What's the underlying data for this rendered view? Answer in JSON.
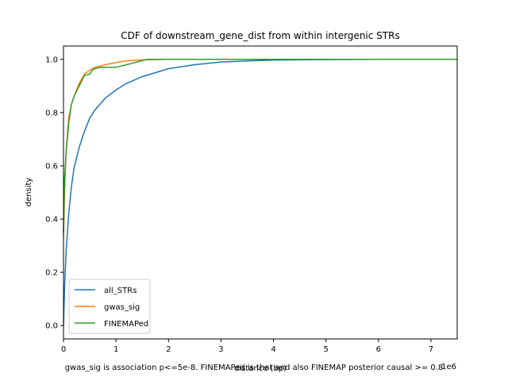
{
  "chart_data": {
    "type": "line",
    "title": "CDF of downstream_gene_dist from within intergenic STRs",
    "xlabel": "distance (bp)",
    "ylabel": "density",
    "x_offset_label": "1e6",
    "caption": "gwas_sig is association p<=5e-8. FINEMAPed is that and also FINEMAP posterior causal >= 0.8",
    "xlim": [
      0,
      7.5
    ],
    "ylim": [
      -0.05,
      1.05
    ],
    "x_ticks": [
      0,
      1,
      2,
      3,
      4,
      5,
      6,
      7
    ],
    "y_ticks": [
      0.0,
      0.2,
      0.4,
      0.6,
      0.8,
      1.0
    ],
    "grid": false,
    "legend_placement": "lower-left",
    "series": [
      {
        "name": "all_STRs",
        "color": "#1f77b4",
        "x": [
          0,
          0.02,
          0.05,
          0.1,
          0.15,
          0.2,
          0.3,
          0.4,
          0.5,
          0.6,
          0.8,
          1.0,
          1.2,
          1.5,
          2.0,
          2.5,
          3.0,
          3.5,
          4.0,
          5.0,
          6.0,
          7.5
        ],
        "y": [
          0.0,
          0.14,
          0.28,
          0.42,
          0.52,
          0.59,
          0.67,
          0.73,
          0.78,
          0.81,
          0.855,
          0.885,
          0.91,
          0.935,
          0.965,
          0.98,
          0.99,
          0.994,
          0.997,
          0.999,
          1.0,
          1.0
        ]
      },
      {
        "name": "gwas_sig",
        "color": "#ff7f0e",
        "x": [
          0,
          0.02,
          0.05,
          0.08,
          0.1,
          0.15,
          0.2,
          0.3,
          0.4,
          0.5,
          0.6,
          0.8,
          1.0,
          1.2,
          1.5,
          2.0,
          3.0,
          7.5
        ],
        "y": [
          0.33,
          0.5,
          0.65,
          0.74,
          0.78,
          0.83,
          0.86,
          0.91,
          0.945,
          0.96,
          0.97,
          0.98,
          0.988,
          0.994,
          0.998,
          1.0,
          1.0,
          1.0
        ]
      },
      {
        "name": "FINEMAPed",
        "color": "#2ca02c",
        "x": [
          0,
          0.02,
          0.05,
          0.1,
          0.15,
          0.2,
          0.25,
          0.3,
          0.35,
          0.4,
          0.5,
          0.55,
          0.6,
          0.7,
          1.0,
          1.2,
          1.3,
          1.4,
          1.6,
          2.0,
          7.5
        ],
        "y": [
          0.35,
          0.55,
          0.65,
          0.76,
          0.83,
          0.86,
          0.88,
          0.9,
          0.92,
          0.94,
          0.945,
          0.96,
          0.965,
          0.97,
          0.97,
          0.98,
          0.985,
          0.99,
          1.0,
          1.0,
          1.0
        ]
      }
    ]
  }
}
